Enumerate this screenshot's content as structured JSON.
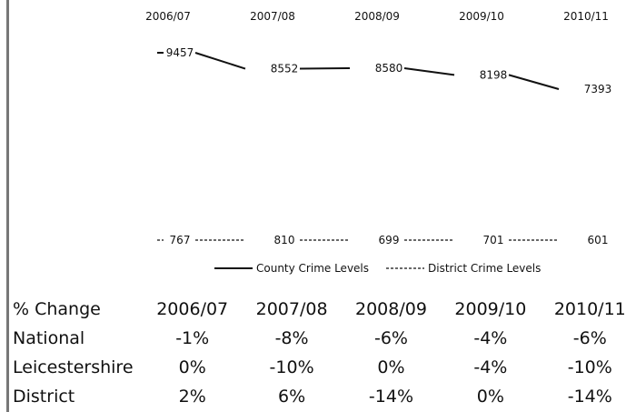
{
  "chart_data": {
    "type": "line",
    "categories": [
      "2006/07",
      "2007/08",
      "2008/09",
      "2009/10",
      "2010/11"
    ],
    "series": [
      {
        "name": "County Crime Levels",
        "values": [
          9457,
          8552,
          8580,
          8198,
          7393
        ],
        "line_style": "solid",
        "color": "#111111"
      },
      {
        "name": "District Crime Levels",
        "values": [
          767,
          810,
          699,
          701,
          601
        ],
        "line_style": "dashed",
        "color": "#111111"
      }
    ],
    "data_labels": true,
    "x_axis_position": "top",
    "legend_position": "bottom-center",
    "grid": false
  },
  "change_table": {
    "header_label": "% Change",
    "columns": [
      "2006/07",
      "2007/08",
      "2008/09",
      "2009/10",
      "2010/11"
    ],
    "rows": [
      {
        "label": "National",
        "values": [
          "-1%",
          "-8%",
          "-6%",
          "-4%",
          "-6%"
        ]
      },
      {
        "label": "Leicestershire",
        "values": [
          "0%",
          "-10%",
          "0%",
          "-4%",
          "-10%"
        ]
      },
      {
        "label": "District",
        "values": [
          "2%",
          "6%",
          "-14%",
          "0%",
          "-14%"
        ]
      }
    ]
  }
}
